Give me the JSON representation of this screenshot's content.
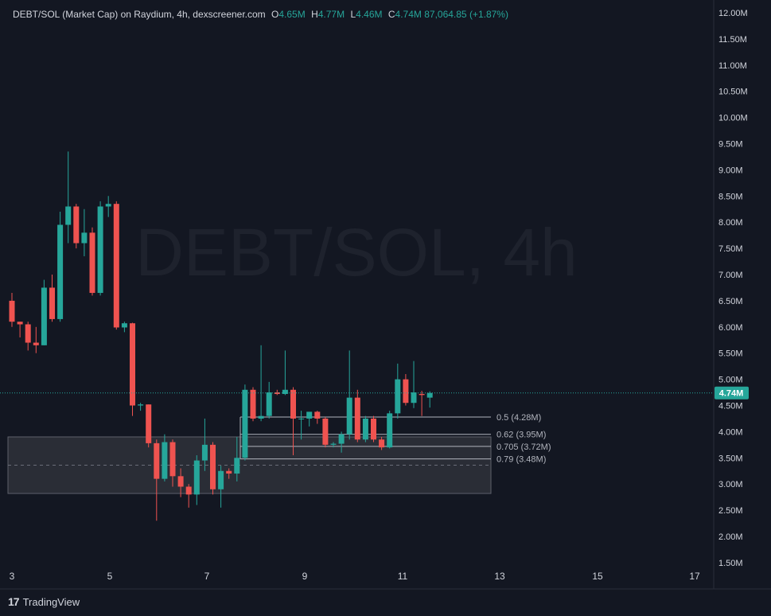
{
  "legend": {
    "symbol": "DEBT/SOL (Market Cap) on Raydium, 4h, dexscreener.com",
    "o_label": "O",
    "o_value": "4.65M",
    "h_label": "H",
    "h_value": "4.77M",
    "l_label": "L",
    "l_value": "4.46M",
    "c_label": "C",
    "c_value": "4.74M",
    "change": "87,064.85 (+1.87%)"
  },
  "watermark": "DEBT/SOL, 4h",
  "brand": "TradingView",
  "colors": {
    "background": "#131722",
    "up": "#26a69a",
    "down": "#ef5350",
    "text": "#d1d4dc",
    "grid": "#2a2e39",
    "price_tag": "#26a69a",
    "zone": "#363a45"
  },
  "chart_data": {
    "type": "candlestick",
    "yaxis": {
      "min": 1.5,
      "max": 12.0,
      "unit": "M",
      "ticks": [
        "1.50M",
        "2.00M",
        "2.50M",
        "3.00M",
        "3.50M",
        "4.00M",
        "4.50M",
        "5.00M",
        "5.50M",
        "6.00M",
        "6.50M",
        "7.00M",
        "7.50M",
        "8.00M",
        "8.50M",
        "9.00M",
        "9.50M",
        "10.00M",
        "10.50M",
        "11.00M",
        "11.50M",
        "12.00M"
      ]
    },
    "xaxis": {
      "ticks": [
        "3",
        "5",
        "7",
        "9",
        "11",
        "13",
        "15",
        "17"
      ]
    },
    "last_price": {
      "value": 4.74,
      "label": "4.74M"
    },
    "candles": [
      {
        "o": 6.5,
        "h": 6.65,
        "l": 6.0,
        "c": 6.1
      },
      {
        "o": 6.1,
        "h": 6.1,
        "l": 5.8,
        "c": 6.05
      },
      {
        "o": 6.05,
        "h": 6.1,
        "l": 5.55,
        "c": 5.7
      },
      {
        "o": 5.7,
        "h": 6.0,
        "l": 5.5,
        "c": 5.65
      },
      {
        "o": 5.65,
        "h": 6.9,
        "l": 5.65,
        "c": 6.75
      },
      {
        "o": 6.75,
        "h": 7.0,
        "l": 6.1,
        "c": 6.15
      },
      {
        "o": 6.15,
        "h": 8.2,
        "l": 6.1,
        "c": 7.95
      },
      {
        "o": 7.95,
        "h": 9.35,
        "l": 7.6,
        "c": 8.3
      },
      {
        "o": 8.3,
        "h": 8.35,
        "l": 7.5,
        "c": 7.6
      },
      {
        "o": 7.6,
        "h": 8.25,
        "l": 7.35,
        "c": 7.8
      },
      {
        "o": 7.8,
        "h": 7.9,
        "l": 6.6,
        "c": 6.65
      },
      {
        "o": 6.65,
        "h": 8.4,
        "l": 6.6,
        "c": 8.3
      },
      {
        "o": 8.3,
        "h": 8.5,
        "l": 8.1,
        "c": 8.35
      },
      {
        "o": 8.35,
        "h": 8.4,
        "l": 5.95,
        "c": 5.99
      },
      {
        "o": 5.99,
        "h": 6.1,
        "l": 5.9,
        "c": 6.07
      },
      {
        "o": 6.07,
        "h": 6.08,
        "l": 4.3,
        "c": 4.5
      },
      {
        "o": 4.5,
        "h": 4.55,
        "l": 4.4,
        "c": 4.52
      },
      {
        "o": 4.52,
        "h": 4.52,
        "l": 3.7,
        "c": 3.78
      },
      {
        "o": 3.78,
        "h": 3.85,
        "l": 2.3,
        "c": 3.1
      },
      {
        "o": 3.1,
        "h": 3.95,
        "l": 3.05,
        "c": 3.8
      },
      {
        "o": 3.8,
        "h": 3.85,
        "l": 2.95,
        "c": 3.15
      },
      {
        "o": 3.15,
        "h": 3.3,
        "l": 2.75,
        "c": 2.95
      },
      {
        "o": 2.95,
        "h": 3.0,
        "l": 2.55,
        "c": 2.8
      },
      {
        "o": 2.8,
        "h": 3.55,
        "l": 2.6,
        "c": 3.45
      },
      {
        "o": 3.45,
        "h": 4.25,
        "l": 3.25,
        "c": 3.75
      },
      {
        "o": 3.75,
        "h": 3.8,
        "l": 2.8,
        "c": 2.9
      },
      {
        "o": 2.9,
        "h": 3.35,
        "l": 2.55,
        "c": 3.25
      },
      {
        "o": 3.25,
        "h": 3.3,
        "l": 3.1,
        "c": 3.2
      },
      {
        "o": 3.2,
        "h": 3.9,
        "l": 3.05,
        "c": 3.5
      },
      {
        "o": 3.5,
        "h": 4.9,
        "l": 3.45,
        "c": 4.8
      },
      {
        "o": 4.8,
        "h": 4.85,
        "l": 4.2,
        "c": 4.25
      },
      {
        "o": 4.25,
        "h": 5.65,
        "l": 4.2,
        "c": 4.3
      },
      {
        "o": 4.3,
        "h": 4.95,
        "l": 4.25,
        "c": 4.75
      },
      {
        "o": 4.75,
        "h": 4.8,
        "l": 4.7,
        "c": 4.72
      },
      {
        "o": 4.72,
        "h": 5.55,
        "l": 4.7,
        "c": 4.8
      },
      {
        "o": 4.8,
        "h": 4.85,
        "l": 3.55,
        "c": 4.25
      },
      {
        "o": 4.25,
        "h": 4.4,
        "l": 3.85,
        "c": 4.25
      },
      {
        "o": 4.25,
        "h": 4.35,
        "l": 4.1,
        "c": 4.38
      },
      {
        "o": 4.38,
        "h": 4.4,
        "l": 4.15,
        "c": 4.25
      },
      {
        "o": 4.25,
        "h": 4.28,
        "l": 3.7,
        "c": 3.75
      },
      {
        "o": 3.75,
        "h": 3.8,
        "l": 3.7,
        "c": 3.77
      },
      {
        "o": 3.77,
        "h": 4.0,
        "l": 3.6,
        "c": 3.95
      },
      {
        "o": 3.95,
        "h": 5.55,
        "l": 3.85,
        "c": 4.65
      },
      {
        "o": 4.65,
        "h": 4.8,
        "l": 3.8,
        "c": 3.85
      },
      {
        "o": 3.85,
        "h": 4.3,
        "l": 3.8,
        "c": 4.25
      },
      {
        "o": 4.25,
        "h": 4.3,
        "l": 3.8,
        "c": 3.85
      },
      {
        "o": 3.85,
        "h": 3.9,
        "l": 3.65,
        "c": 3.7
      },
      {
        "o": 3.7,
        "h": 4.4,
        "l": 3.68,
        "c": 4.35
      },
      {
        "o": 4.35,
        "h": 5.3,
        "l": 4.25,
        "c": 5.0
      },
      {
        "o": 5.0,
        "h": 5.1,
        "l": 4.5,
        "c": 4.55
      },
      {
        "o": 4.55,
        "h": 5.35,
        "l": 4.45,
        "c": 4.75
      },
      {
        "o": 4.72,
        "h": 4.78,
        "l": 4.3,
        "c": 4.7
      },
      {
        "o": 4.65,
        "h": 4.77,
        "l": 4.46,
        "c": 4.74
      }
    ],
    "fib_levels": [
      {
        "label": "0.5 (4.28M)",
        "value": 4.28
      },
      {
        "label": "0.62 (3.95M)",
        "value": 3.95
      },
      {
        "label": "0.705 (3.72M)",
        "value": 3.72
      },
      {
        "label": "0.79 (3.48M)",
        "value": 3.48
      }
    ],
    "zone": {
      "top": 3.9,
      "bottom": 2.82,
      "mid": 3.36
    }
  }
}
